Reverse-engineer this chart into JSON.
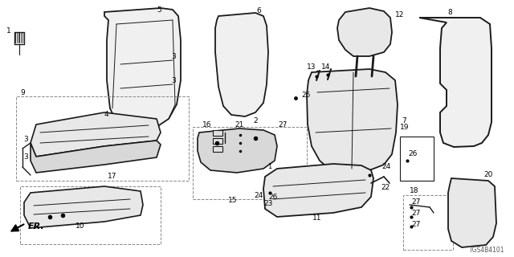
{
  "diagram_id": "TGS4B4101",
  "bg_color": "#ffffff",
  "line_color": "#1a1a1a",
  "fig_width": 6.4,
  "fig_height": 3.2,
  "dpi": 100
}
